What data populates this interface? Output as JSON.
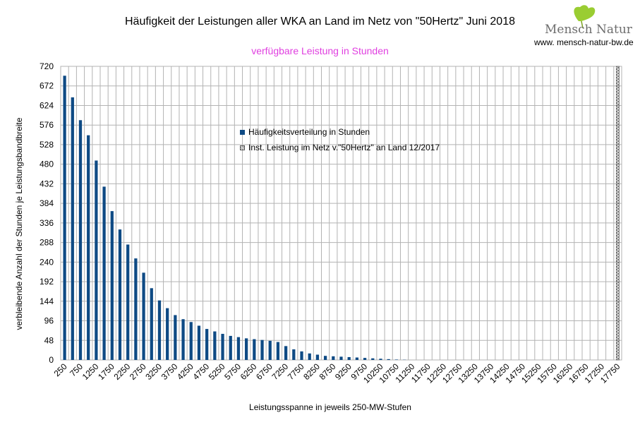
{
  "title": "Häufigkeit der Leistungen aller WKA an Land im Netz von \"50Hertz\" Juni 2018",
  "subtitle": "verfügbare Leistung in Stunden",
  "logo": {
    "name": "Mensch Natur",
    "url": "www. mensch-natur-bw.de"
  },
  "colors": {
    "bar": "#0e4a84",
    "grid": "#b3b3b3",
    "subtitle": "#e040e0"
  },
  "chart_data": {
    "type": "bar",
    "title": "Häufigkeit der Leistungen aller WKA an Land im Netz von \"50Hertz\" Juni 2018",
    "subtitle": "verfügbare Leistung in Stunden",
    "xlabel": "Leistungsspanne in jeweils 250-MW-Stufen",
    "ylabel": "verbleibende Anzahl der Stunden je Leistungsbandbreite",
    "ylim": [
      0,
      720
    ],
    "yticks": [
      0,
      48,
      96,
      144,
      192,
      240,
      288,
      336,
      384,
      432,
      480,
      528,
      576,
      624,
      672,
      720
    ],
    "grid": true,
    "legend_placement": "center",
    "x_start": 250,
    "x_step": 250,
    "x_count": 71,
    "xtick_labels": [
      "250",
      "750",
      "1250",
      "1750",
      "2250",
      "2750",
      "3250",
      "3750",
      "4250",
      "4750",
      "5250",
      "5750",
      "6250",
      "6750",
      "7250",
      "7750",
      "8250",
      "8750",
      "9250",
      "9750",
      "10250",
      "10750",
      "11250",
      "11750",
      "12250",
      "12750",
      "13250",
      "13750",
      "14250",
      "14750",
      "15250",
      "15750",
      "16250",
      "16750",
      "17250",
      "17750"
    ],
    "series": [
      {
        "name": "Häufigkeitsverteilung in Stunden",
        "values": [
          697,
          644,
          588,
          551,
          489,
          425,
          365,
          320,
          283,
          249,
          214,
          176,
          146,
          127,
          110,
          100,
          93,
          84,
          76,
          70,
          64,
          59,
          56,
          53,
          51,
          49,
          47,
          44,
          34,
          26,
          21,
          16,
          13,
          10,
          9,
          8,
          7,
          6,
          5,
          4,
          3,
          2,
          1,
          0.5,
          0,
          0,
          0,
          0,
          0,
          0,
          0,
          0,
          0,
          0,
          0,
          0,
          0,
          0,
          0,
          0,
          0,
          0,
          0,
          0,
          0,
          0,
          0,
          0,
          0,
          0,
          0
        ]
      },
      {
        "name": "Inst. Leistung im Netz v.\"50Hertz\" an Land 12/2017",
        "x": 17750,
        "value": 720
      }
    ]
  }
}
